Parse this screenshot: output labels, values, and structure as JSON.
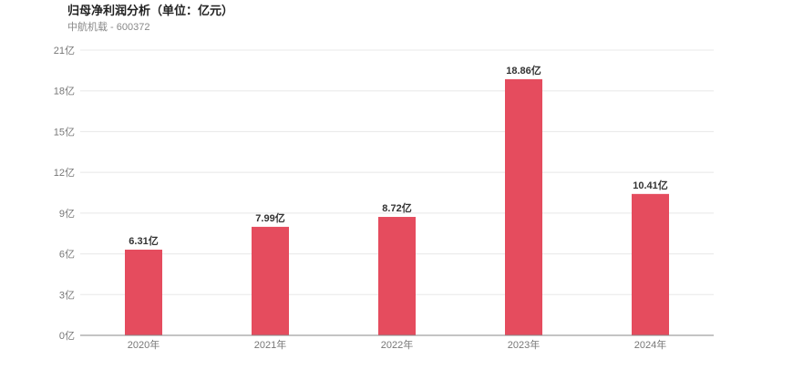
{
  "chart_data": {
    "type": "bar",
    "title": "归母净利润分析（单位：亿元）",
    "subtitle": "中航机载 - 600372",
    "categories": [
      "2020年",
      "2021年",
      "2022年",
      "2023年",
      "2024年"
    ],
    "values": [
      6.31,
      7.99,
      8.72,
      18.86,
      10.41
    ],
    "data_labels": [
      "6.31亿",
      "7.99亿",
      "8.72亿",
      "18.86亿",
      "10.41亿"
    ],
    "y_ticks": [
      "0亿",
      "3亿",
      "6亿",
      "9亿",
      "12亿",
      "15亿",
      "18亿",
      "21亿"
    ],
    "ylim": [
      0,
      21
    ],
    "xlabel": "",
    "ylabel": "",
    "grid": true,
    "legend": "none",
    "colors": {
      "bar": "#e54c5e",
      "grid": "#e8e8e8",
      "axis": "#888888"
    }
  }
}
